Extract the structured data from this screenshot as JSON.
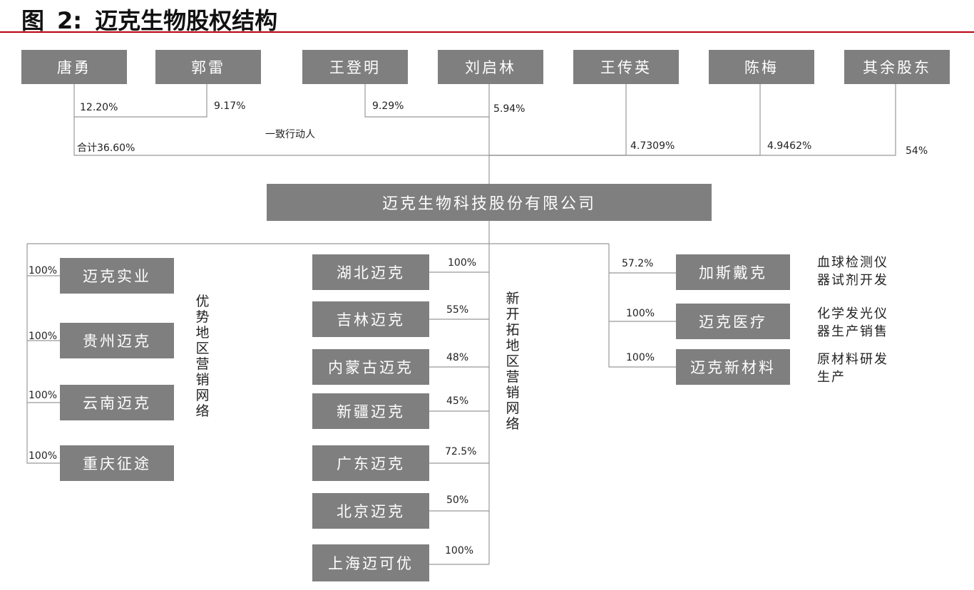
{
  "title": {
    "figure": "图",
    "num": "2:",
    "text": "迈克生物股权结构"
  },
  "shareholders": [
    {
      "name": "唐勇",
      "pct": "12.20%"
    },
    {
      "name": "郭雷",
      "pct": "9.17%"
    },
    {
      "name": "王登明",
      "pct": "9.29%"
    },
    {
      "name": "刘启林",
      "pct": "5.94%"
    },
    {
      "name": "王传英",
      "pct": "4.7309%"
    },
    {
      "name": "陈梅",
      "pct": "4.9462%"
    },
    {
      "name": "其余股东",
      "pct": "54%"
    }
  ],
  "concert": {
    "label": "一致行动人",
    "total": "合计36.60%"
  },
  "company": "迈克生物科技股份有限公司",
  "left_group": {
    "label": "优势地区营销网络",
    "subs": [
      {
        "name": "迈克实业",
        "pct": "100%"
      },
      {
        "name": "贵州迈克",
        "pct": "100%"
      },
      {
        "name": "云南迈克",
        "pct": "100%"
      },
      {
        "name": "重庆征途",
        "pct": "100%"
      }
    ]
  },
  "middle_group": {
    "label": "新开拓地区营销网络",
    "subs": [
      {
        "name": "湖北迈克",
        "pct": "100%"
      },
      {
        "name": "吉林迈克",
        "pct": "55%"
      },
      {
        "name": "内蒙古迈克",
        "pct": "48%"
      },
      {
        "name": "新疆迈克",
        "pct": "45%"
      },
      {
        "name": "广东迈克",
        "pct": "72.5%"
      },
      {
        "name": "北京迈克",
        "pct": "50%"
      },
      {
        "name": "上海迈可优",
        "pct": "100%"
      }
    ]
  },
  "right_group": {
    "subs": [
      {
        "name": "加斯戴克",
        "pct": "57.2%",
        "desc": "血球检测仪\n器试剂开发"
      },
      {
        "name": "迈克医疗",
        "pct": "100%",
        "desc": "化学发光仪\n器生产销售"
      },
      {
        "name": "迈克新材料",
        "pct": "100%",
        "desc": "原材料研发\n生产"
      }
    ]
  }
}
